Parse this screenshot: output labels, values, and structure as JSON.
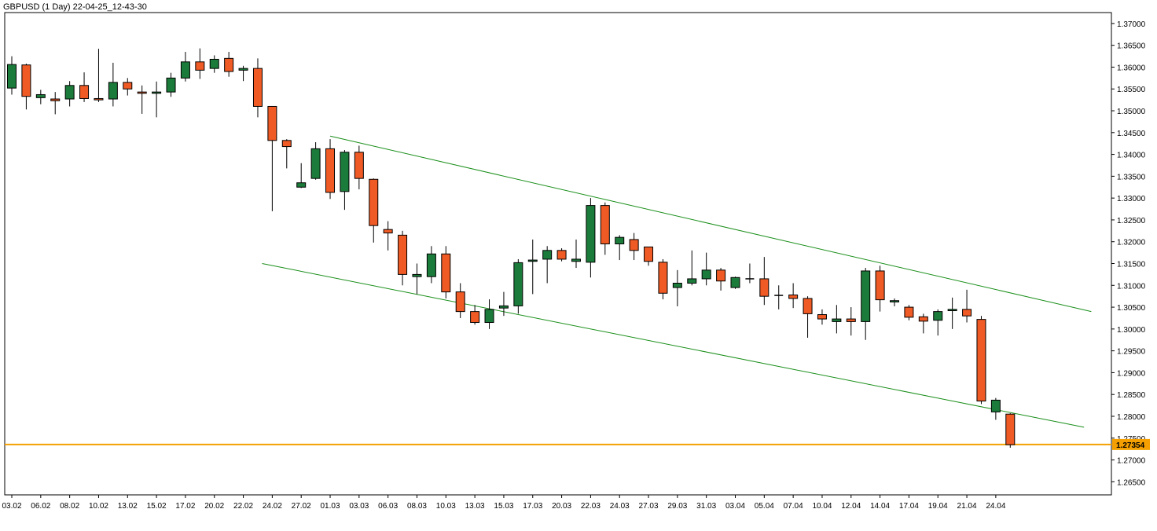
{
  "header": {
    "symbol_label": "GBPUSD (1 Day) 22-04-25_12-43-30"
  },
  "colors": {
    "bull": "#1b7b3a",
    "bear": "#f05a24",
    "channel": "#1a8f1a",
    "price_line": "#f5a000",
    "price_label_bg": "#f5a000",
    "grid_border": "#000000"
  },
  "chart_data": {
    "type": "candlestick",
    "title": "GBPUSD (1 Day) 22-04-25_12-43-30",
    "timeframe": "1 Day",
    "ylim": [
      1.262,
      1.3725
    ],
    "y_ticks": [
      "1.37000",
      "1.36500",
      "1.36000",
      "1.35500",
      "1.35000",
      "1.34500",
      "1.34000",
      "1.33500",
      "1.33000",
      "1.32500",
      "1.32000",
      "1.31500",
      "1.31000",
      "1.30500",
      "1.30000",
      "1.29500",
      "1.29000",
      "1.28500",
      "1.28000",
      "1.27500",
      "1.27000",
      "1.26500"
    ],
    "x_tick_labels": [
      "03.02",
      "06.02",
      "08.02",
      "10.02",
      "13.02",
      "15.02",
      "17.02",
      "20.02",
      "22.02",
      "24.02",
      "27.02",
      "01.03",
      "03.03",
      "06.03",
      "08.03",
      "10.03",
      "13.03",
      "15.03",
      "17.03",
      "20.03",
      "22.03",
      "24.03",
      "27.03",
      "29.03",
      "31.03",
      "03.04",
      "05.04",
      "07.04",
      "10.04",
      "12.04",
      "14.04",
      "17.04",
      "19.04",
      "21.04",
      "24.04"
    ],
    "current_price": "1.27354",
    "candles": [
      {
        "o": 1.3552,
        "h": 1.3625,
        "l": 1.3537,
        "c": 1.3606
      },
      {
        "o": 1.3605,
        "h": 1.3608,
        "l": 1.3503,
        "c": 1.3533
      },
      {
        "o": 1.353,
        "h": 1.3548,
        "l": 1.3515,
        "c": 1.3537
      },
      {
        "o": 1.3527,
        "h": 1.3543,
        "l": 1.3492,
        "c": 1.3523
      },
      {
        "o": 1.3527,
        "h": 1.3568,
        "l": 1.351,
        "c": 1.3558
      },
      {
        "o": 1.3558,
        "h": 1.3588,
        "l": 1.352,
        "c": 1.3528
      },
      {
        "o": 1.3528,
        "h": 1.3642,
        "l": 1.352,
        "c": 1.3525
      },
      {
        "o": 1.3527,
        "h": 1.361,
        "l": 1.351,
        "c": 1.3565
      },
      {
        "o": 1.3565,
        "h": 1.3575,
        "l": 1.3535,
        "c": 1.355
      },
      {
        "o": 1.3543,
        "h": 1.3558,
        "l": 1.3493,
        "c": 1.354
      },
      {
        "o": 1.354,
        "h": 1.3567,
        "l": 1.3485,
        "c": 1.3543
      },
      {
        "o": 1.3543,
        "h": 1.3587,
        "l": 1.3532,
        "c": 1.3575
      },
      {
        "o": 1.3575,
        "h": 1.3635,
        "l": 1.3567,
        "c": 1.3612
      },
      {
        "o": 1.3612,
        "h": 1.3643,
        "l": 1.3573,
        "c": 1.3593
      },
      {
        "o": 1.3597,
        "h": 1.3627,
        "l": 1.3587,
        "c": 1.3618
      },
      {
        "o": 1.362,
        "h": 1.3635,
        "l": 1.3578,
        "c": 1.359
      },
      {
        "o": 1.3593,
        "h": 1.3603,
        "l": 1.3568,
        "c": 1.3597
      },
      {
        "o": 1.3597,
        "h": 1.362,
        "l": 1.3485,
        "c": 1.351
      },
      {
        "o": 1.351,
        "h": 1.351,
        "l": 1.327,
        "c": 1.3432
      },
      {
        "o": 1.3432,
        "h": 1.3435,
        "l": 1.3368,
        "c": 1.3418
      },
      {
        "o": 1.3325,
        "h": 1.338,
        "l": 1.3323,
        "c": 1.3335
      },
      {
        "o": 1.3345,
        "h": 1.3428,
        "l": 1.3342,
        "c": 1.3413
      },
      {
        "o": 1.3413,
        "h": 1.3435,
        "l": 1.3298,
        "c": 1.3313
      },
      {
        "o": 1.3315,
        "h": 1.341,
        "l": 1.3273,
        "c": 1.3405
      },
      {
        "o": 1.3405,
        "h": 1.342,
        "l": 1.332,
        "c": 1.3345
      },
      {
        "o": 1.3343,
        "h": 1.3345,
        "l": 1.3198,
        "c": 1.3237
      },
      {
        "o": 1.3228,
        "h": 1.3247,
        "l": 1.318,
        "c": 1.322
      },
      {
        "o": 1.3215,
        "h": 1.3225,
        "l": 1.31,
        "c": 1.3125
      },
      {
        "o": 1.312,
        "h": 1.315,
        "l": 1.308,
        "c": 1.3125
      },
      {
        "o": 1.312,
        "h": 1.319,
        "l": 1.3105,
        "c": 1.3172
      },
      {
        "o": 1.3172,
        "h": 1.319,
        "l": 1.307,
        "c": 1.3085
      },
      {
        "o": 1.3085,
        "h": 1.3105,
        "l": 1.3025,
        "c": 1.304
      },
      {
        "o": 1.304,
        "h": 1.3055,
        "l": 1.301,
        "c": 1.3015
      },
      {
        "o": 1.3015,
        "h": 1.3068,
        "l": 1.3,
        "c": 1.3045
      },
      {
        "o": 1.3048,
        "h": 1.3085,
        "l": 1.303,
        "c": 1.3053
      },
      {
        "o": 1.3053,
        "h": 1.316,
        "l": 1.3035,
        "c": 1.3152
      },
      {
        "o": 1.3155,
        "h": 1.3205,
        "l": 1.308,
        "c": 1.3158
      },
      {
        "o": 1.316,
        "h": 1.319,
        "l": 1.3105,
        "c": 1.318
      },
      {
        "o": 1.318,
        "h": 1.3185,
        "l": 1.3155,
        "c": 1.316
      },
      {
        "o": 1.3155,
        "h": 1.3205,
        "l": 1.314,
        "c": 1.316
      },
      {
        "o": 1.3153,
        "h": 1.33,
        "l": 1.3118,
        "c": 1.3283
      },
      {
        "o": 1.3283,
        "h": 1.329,
        "l": 1.317,
        "c": 1.3195
      },
      {
        "o": 1.3195,
        "h": 1.3215,
        "l": 1.3158,
        "c": 1.321
      },
      {
        "o": 1.3205,
        "h": 1.322,
        "l": 1.3158,
        "c": 1.318
      },
      {
        "o": 1.3188,
        "h": 1.3188,
        "l": 1.3145,
        "c": 1.3155
      },
      {
        "o": 1.3153,
        "h": 1.316,
        "l": 1.3068,
        "c": 1.3082
      },
      {
        "o": 1.3095,
        "h": 1.3135,
        "l": 1.3052,
        "c": 1.3105
      },
      {
        "o": 1.3105,
        "h": 1.318,
        "l": 1.31,
        "c": 1.3115
      },
      {
        "o": 1.3115,
        "h": 1.3175,
        "l": 1.31,
        "c": 1.3135
      },
      {
        "o": 1.3135,
        "h": 1.314,
        "l": 1.3088,
        "c": 1.311
      },
      {
        "o": 1.3095,
        "h": 1.312,
        "l": 1.3092,
        "c": 1.3118
      },
      {
        "o": 1.3113,
        "h": 1.315,
        "l": 1.3105,
        "c": 1.3115
      },
      {
        "o": 1.3115,
        "h": 1.3165,
        "l": 1.3055,
        "c": 1.3075
      },
      {
        "o": 1.3075,
        "h": 1.31,
        "l": 1.3045,
        "c": 1.3077
      },
      {
        "o": 1.3078,
        "h": 1.3105,
        "l": 1.3048,
        "c": 1.307
      },
      {
        "o": 1.307,
        "h": 1.3075,
        "l": 1.298,
        "c": 1.3035
      },
      {
        "o": 1.3033,
        "h": 1.3045,
        "l": 1.301,
        "c": 1.3023
      },
      {
        "o": 1.3017,
        "h": 1.3055,
        "l": 1.299,
        "c": 1.3023
      },
      {
        "o": 1.3023,
        "h": 1.305,
        "l": 1.2985,
        "c": 1.3017
      },
      {
        "o": 1.3017,
        "h": 1.314,
        "l": 1.2975,
        "c": 1.3133
      },
      {
        "o": 1.3133,
        "h": 1.3145,
        "l": 1.304,
        "c": 1.3067
      },
      {
        "o": 1.3062,
        "h": 1.307,
        "l": 1.3052,
        "c": 1.3065
      },
      {
        "o": 1.305,
        "h": 1.3055,
        "l": 1.302,
        "c": 1.3027
      },
      {
        "o": 1.3028,
        "h": 1.3035,
        "l": 1.299,
        "c": 1.3018
      },
      {
        "o": 1.302,
        "h": 1.3045,
        "l": 1.2985,
        "c": 1.304
      },
      {
        "o": 1.3042,
        "h": 1.3072,
        "l": 1.3,
        "c": 1.3045
      },
      {
        "o": 1.3045,
        "h": 1.309,
        "l": 1.3015,
        "c": 1.303
      },
      {
        "o": 1.3022,
        "h": 1.303,
        "l": 1.2828,
        "c": 1.2835
      },
      {
        "o": 1.281,
        "h": 1.2842,
        "l": 1.2792,
        "c": 1.2837
      },
      {
        "o": 1.2805,
        "h": 1.2807,
        "l": 1.2728,
        "c": 1.2735
      }
    ],
    "channel_lines": [
      {
        "name": "upper",
        "x1": 22.0,
        "y1": 1.3442,
        "x2": 74.6,
        "y2": 1.304
      },
      {
        "name": "lower",
        "x1": 17.3,
        "y1": 1.315,
        "x2": 74.1,
        "y2": 1.2775
      }
    ]
  }
}
